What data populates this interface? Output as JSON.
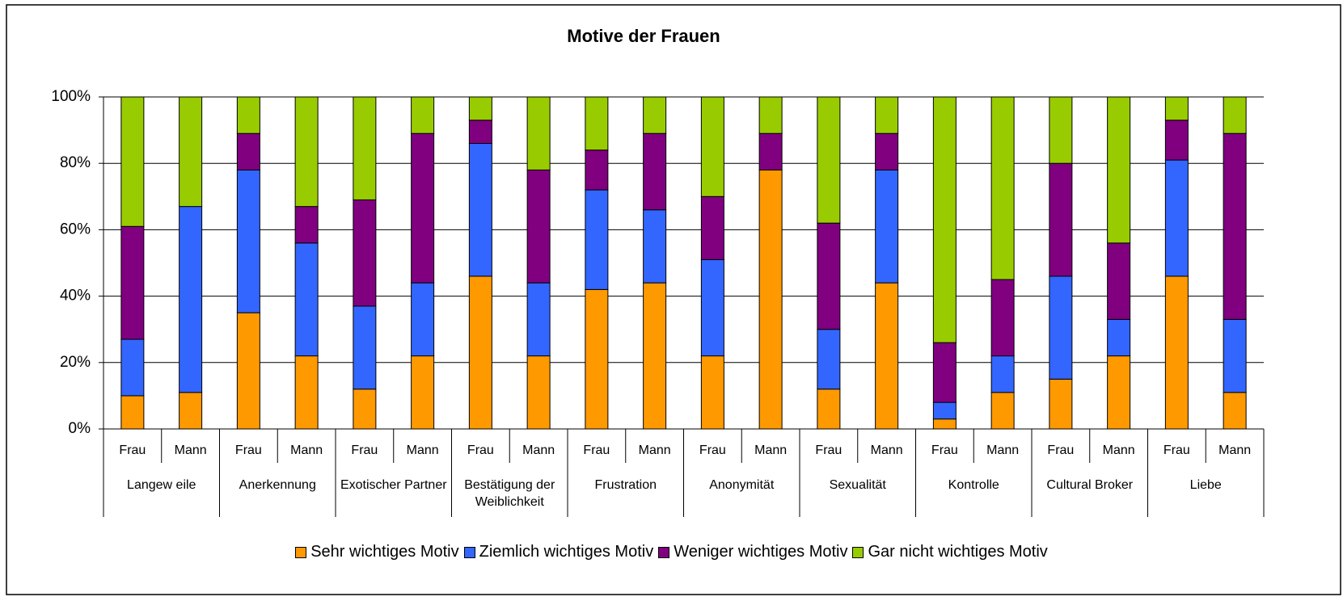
{
  "chart_data": {
    "type": "stacked_bar_100",
    "title": "Motive der Frauen",
    "groups": [
      "Langew eile",
      "Anerkennung",
      "Exotischer Partner",
      "Bestätigung der Weiblichkeit",
      "Frustration",
      "Anonymität",
      "Sexualität",
      "Kontrolle",
      "Cultural Broker",
      "Liebe"
    ],
    "categories": [
      "Frau",
      "Mann",
      "Frau",
      "Mann",
      "Frau",
      "Mann",
      "Frau",
      "Mann",
      "Frau",
      "Mann",
      "Frau",
      "Mann",
      "Frau",
      "Mann",
      "Frau",
      "Mann",
      "Frau",
      "Mann",
      "Frau",
      "Mann"
    ],
    "series": [
      {
        "name": "Sehr wichtiges Motiv",
        "color": "#ff9900",
        "values": [
          10,
          11,
          35,
          22,
          12,
          22,
          46,
          22,
          42,
          44,
          22,
          78,
          12,
          44,
          3,
          11,
          15,
          22,
          46,
          11
        ]
      },
      {
        "name": "Ziemlich wichtiges Motiv",
        "color": "#3366ff",
        "values": [
          17,
          56,
          43,
          34,
          25,
          22,
          40,
          22,
          30,
          22,
          29,
          0,
          18,
          34,
          5,
          11,
          31,
          11,
          35,
          22
        ]
      },
      {
        "name": "Weniger wichtiges Motiv",
        "color": "#800080",
        "values": [
          34,
          0,
          11,
          11,
          32,
          45,
          7,
          34,
          12,
          23,
          19,
          11,
          32,
          11,
          18,
          23,
          34,
          23,
          12,
          56
        ]
      },
      {
        "name": "Gar nicht wichtiges Motiv",
        "color": "#99cc00",
        "values": [
          39,
          33,
          11,
          33,
          31,
          11,
          7,
          22,
          16,
          11,
          30,
          11,
          38,
          11,
          74,
          55,
          20,
          44,
          7,
          11
        ]
      }
    ],
    "ylim": [
      0,
      100
    ],
    "yticks": [
      {
        "value": 0,
        "label": "0%"
      },
      {
        "value": 20,
        "label": "20%"
      },
      {
        "value": 40,
        "label": "40%"
      },
      {
        "value": 60,
        "label": "60%"
      },
      {
        "value": 80,
        "label": "80%"
      },
      {
        "value": 100,
        "label": "100%"
      }
    ],
    "grid": true
  }
}
